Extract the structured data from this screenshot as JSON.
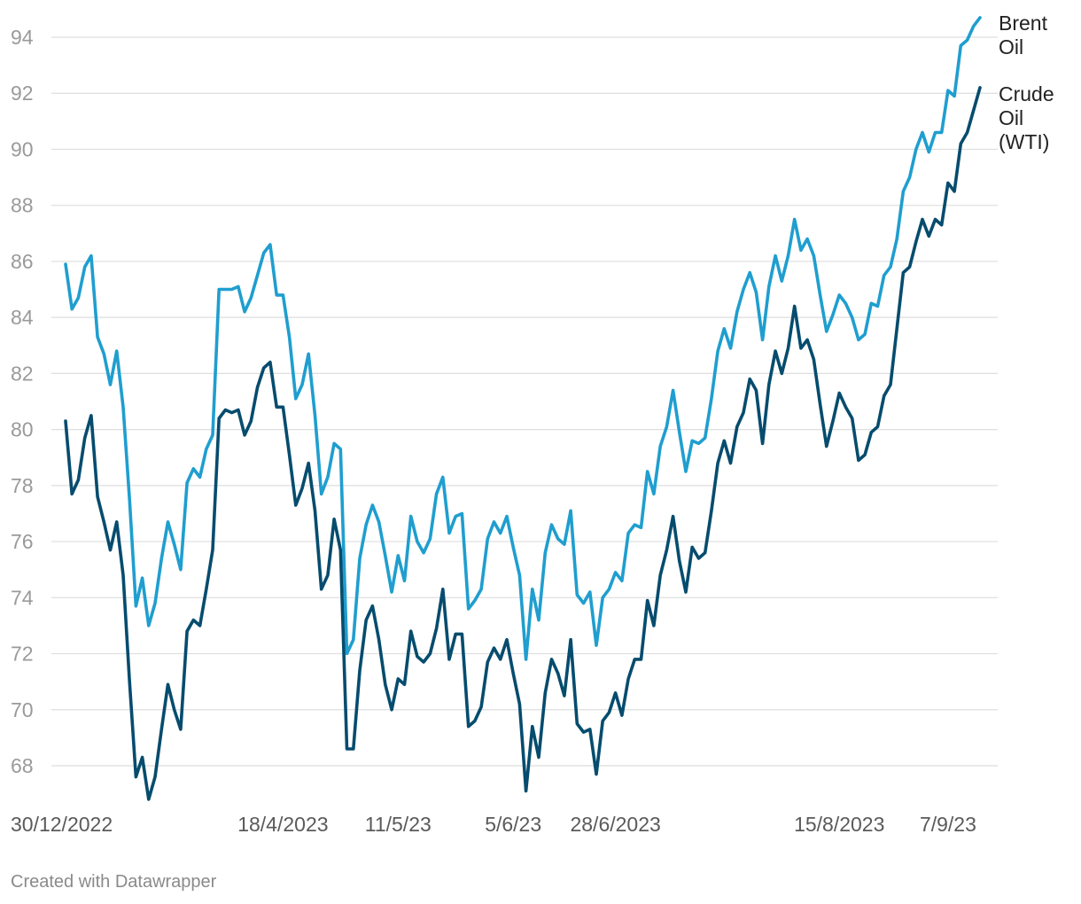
{
  "footer": "Created with Datawrapper",
  "chart_data": {
    "type": "line",
    "ylim": [
      66.7,
      95
    ],
    "grid": true,
    "legend": "right-end labels",
    "y_ticks": [
      68,
      70,
      72,
      74,
      76,
      78,
      80,
      82,
      84,
      86,
      88,
      90,
      92,
      94
    ],
    "x_tick_labels": [
      {
        "label": "30/12/2022",
        "index": 0
      },
      {
        "label": "18/4/2023",
        "index": 34
      },
      {
        "label": "11/5/23",
        "index": 52
      },
      {
        "label": "5/6/23",
        "index": 70
      },
      {
        "label": "28/6/2023",
        "index": 86
      },
      {
        "label": "15/8/2023",
        "index": 121
      },
      {
        "label": "7/9/23",
        "index": 138
      }
    ],
    "series": [
      {
        "name": "Brent Oil",
        "label_lines": [
          "Brent",
          "Oil"
        ],
        "color": "#1f9ecf",
        "values": [
          85.9,
          84.3,
          84.7,
          85.8,
          86.2,
          83.3,
          82.7,
          81.6,
          82.8,
          80.8,
          77.5,
          73.7,
          74.7,
          73.0,
          73.8,
          75.4,
          76.7,
          75.9,
          75.0,
          78.1,
          78.6,
          78.3,
          79.3,
          79.8,
          85.0,
          85.0,
          85.0,
          85.1,
          84.2,
          84.7,
          85.5,
          86.3,
          86.6,
          84.8,
          84.8,
          83.3,
          81.1,
          81.6,
          82.7,
          80.5,
          77.7,
          78.3,
          79.5,
          79.3,
          72.0,
          72.5,
          75.4,
          76.6,
          77.3,
          76.7,
          75.5,
          74.2,
          75.5,
          74.6,
          76.9,
          76.0,
          75.6,
          76.1,
          77.7,
          78.3,
          76.3,
          76.9,
          77.0,
          73.6,
          73.9,
          74.3,
          76.1,
          76.7,
          76.3,
          76.9,
          75.8,
          74.8,
          71.8,
          74.3,
          73.2,
          75.6,
          76.6,
          76.1,
          75.9,
          77.1,
          74.1,
          73.8,
          74.2,
          72.3,
          74.0,
          74.3,
          74.9,
          74.6,
          76.3,
          76.6,
          76.5,
          78.5,
          77.7,
          79.4,
          80.1,
          81.4,
          79.9,
          78.5,
          79.6,
          79.5,
          79.7,
          81.1,
          82.8,
          83.6,
          82.9,
          84.2,
          85.0,
          85.6,
          84.9,
          83.2,
          85.1,
          86.2,
          85.3,
          86.2,
          87.5,
          86.4,
          86.8,
          86.2,
          84.8,
          83.5,
          84.1,
          84.8,
          84.5,
          84.0,
          83.2,
          83.4,
          84.5,
          84.4,
          85.5,
          85.8,
          86.8,
          88.5,
          89.0,
          90.0,
          90.6,
          89.9,
          90.6,
          90.6,
          92.1,
          91.9,
          93.7,
          93.9,
          94.4,
          94.7
        ]
      },
      {
        "name": "Crude Oil (WTI)",
        "label_lines": [
          "Crude",
          "Oil",
          "(WTI)"
        ],
        "color": "#064c6e",
        "values": [
          80.3,
          77.7,
          78.2,
          79.7,
          80.5,
          77.6,
          76.7,
          75.7,
          76.7,
          74.8,
          71.0,
          67.6,
          68.3,
          66.8,
          67.6,
          69.3,
          70.9,
          70.0,
          69.3,
          72.8,
          73.2,
          73.0,
          74.3,
          75.7,
          80.4,
          80.7,
          80.6,
          80.7,
          79.8,
          80.3,
          81.5,
          82.2,
          82.4,
          80.8,
          80.8,
          79.1,
          77.3,
          77.9,
          78.8,
          77.1,
          74.3,
          74.8,
          76.8,
          75.7,
          68.6,
          68.6,
          71.4,
          73.2,
          73.7,
          72.5,
          70.9,
          70.0,
          71.1,
          70.9,
          72.8,
          71.9,
          71.7,
          72.0,
          72.9,
          74.3,
          71.8,
          72.7,
          72.7,
          69.4,
          69.6,
          70.1,
          71.7,
          72.2,
          71.8,
          72.5,
          71.3,
          70.2,
          67.1,
          69.4,
          68.3,
          70.6,
          71.8,
          71.3,
          70.5,
          72.5,
          69.5,
          69.2,
          69.3,
          67.7,
          69.6,
          69.9,
          70.6,
          69.8,
          71.1,
          71.8,
          71.8,
          73.9,
          73.0,
          74.8,
          75.7,
          76.9,
          75.3,
          74.2,
          75.8,
          75.4,
          75.6,
          77.1,
          78.8,
          79.6,
          78.8,
          80.1,
          80.6,
          81.8,
          81.4,
          79.5,
          81.6,
          82.8,
          82.0,
          82.9,
          84.4,
          82.9,
          83.2,
          82.5,
          80.9,
          79.4,
          80.3,
          81.3,
          80.8,
          80.4,
          78.9,
          79.1,
          79.9,
          80.1,
          81.2,
          81.6,
          83.6,
          85.6,
          85.8,
          86.7,
          87.5,
          86.9,
          87.5,
          87.3,
          88.8,
          88.5,
          90.2,
          90.6,
          91.4,
          92.2
        ]
      }
    ]
  }
}
